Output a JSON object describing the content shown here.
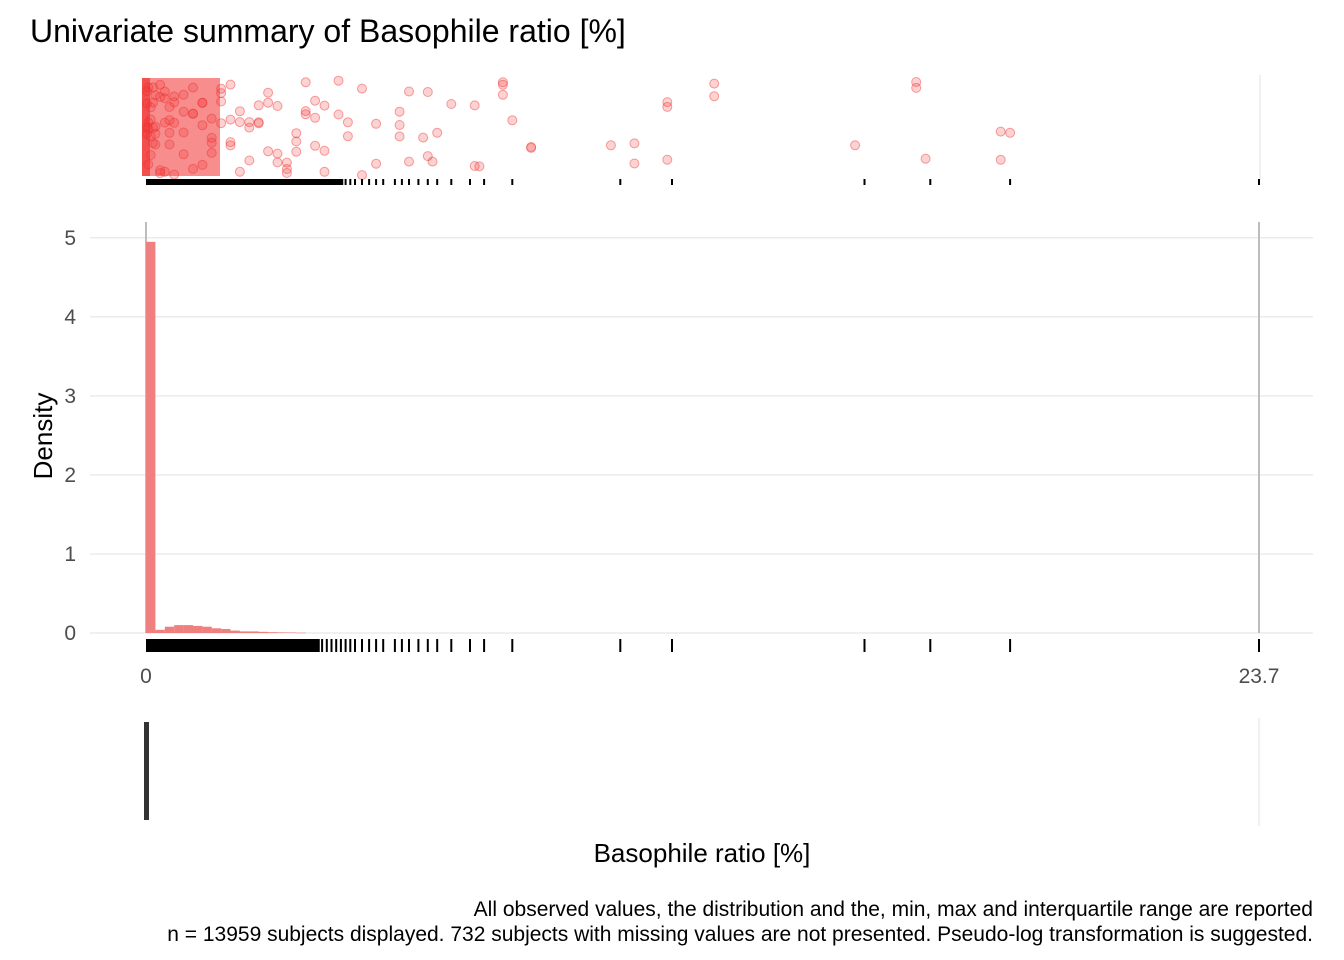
{
  "title": "Univariate summary of Basophile ratio [%]",
  "caption": {
    "line1": "All observed values, the distribution and the, min, max and interquartile range are reported",
    "line2": "n = 13959 subjects displayed. 732 subjects with missing values are not presented. Pseudo-log transformation is suggested."
  },
  "colors": {
    "accent": "#f03030",
    "bar_fill": "#f08080",
    "rug": "#000000",
    "grid": "#ebebeb",
    "max_line": "#bdbdbd",
    "box": "#333333"
  },
  "chart_data": [
    {
      "type": "scatter",
      "panel": "jittered observed values",
      "x_range": [
        0,
        23.7
      ],
      "points_x": [
        0.02,
        0.05,
        0.1,
        0.15,
        0.2,
        0.3,
        0.4,
        0.5,
        0.6,
        0.8,
        1.0,
        1.2,
        1.4,
        1.6,
        1.8,
        2.0,
        2.2,
        2.4,
        2.6,
        2.8,
        3.0,
        3.2,
        3.4,
        3.6,
        3.8,
        4.1,
        4.3,
        4.6,
        4.9,
        5.4,
        6.0,
        7.0,
        7.6,
        8.2,
        10.4,
        11.1,
        12.1,
        16.4,
        18.2
      ],
      "outlier_points": [
        {
          "x": 5.6,
          "y": 0.12
        },
        {
          "x": 5.9,
          "y": 0.6
        },
        {
          "x": 6.1,
          "y": 0.85
        },
        {
          "x": 6.2,
          "y": 0.55
        },
        {
          "x": 7.1,
          "y": 0.9
        },
        {
          "x": 7.6,
          "y": 0.05
        },
        {
          "x": 7.8,
          "y": 0.42
        },
        {
          "x": 9.9,
          "y": 0.68
        },
        {
          "x": 11.1,
          "y": 0.28
        },
        {
          "x": 15.1,
          "y": 0.68
        },
        {
          "x": 16.6,
          "y": 0.82
        },
        {
          "x": 18.4,
          "y": 0.55
        },
        {
          "x": 5.6,
          "y": 0.85
        },
        {
          "x": 6.5,
          "y": 0.25
        },
        {
          "x": 5.4,
          "y": 0.33
        }
      ]
    },
    {
      "type": "bar",
      "panel": "histogram",
      "ylabel": "Density",
      "xlim": [
        0,
        23.7
      ],
      "ylim": [
        0,
        5.2
      ],
      "yticks": [
        0,
        1,
        2,
        3,
        4,
        5
      ],
      "xticks": [
        {
          "value": 0,
          "label": "0"
        },
        {
          "value": 23.7,
          "label": "23.7"
        }
      ],
      "bin_width": 0.2,
      "bin_starts": [
        0.0,
        0.2,
        0.4,
        0.6,
        0.8,
        1.0,
        1.2,
        1.4,
        1.6,
        1.8,
        2.0,
        2.2,
        2.4,
        2.6,
        2.8,
        3.0,
        3.2
      ],
      "values": [
        4.95,
        0.04,
        0.08,
        0.1,
        0.1,
        0.09,
        0.08,
        0.06,
        0.05,
        0.03,
        0.02,
        0.02,
        0.015,
        0.01,
        0.008,
        0.006,
        0.004
      ],
      "rug_x": [
        0.05,
        0.15,
        0.25,
        0.35,
        0.45,
        0.55,
        0.65,
        0.75,
        0.85,
        0.95,
        1.05,
        1.15,
        1.25,
        1.35,
        1.45,
        1.55,
        1.65,
        1.75,
        1.85,
        1.95,
        2.05,
        2.15,
        2.25,
        2.35,
        2.45,
        2.55,
        2.65,
        2.75,
        2.85,
        2.95,
        3.05,
        3.15,
        3.25,
        3.35,
        3.45,
        3.55,
        3.65,
        3.75,
        3.85,
        3.95,
        4.05,
        4.15,
        4.25,
        4.35,
        4.45,
        4.6,
        4.75,
        4.9,
        5.05,
        5.3,
        5.45,
        5.6,
        5.8,
        6.0,
        6.2,
        6.5,
        6.9,
        7.2,
        7.8,
        10.1,
        11.2,
        15.3,
        16.7,
        18.4,
        23.7
      ]
    },
    {
      "type": "box",
      "panel": "min, max and interquartile range",
      "xlabel": "Basophile ratio [%]",
      "min": 0,
      "q1": 0,
      "median": 0,
      "q3": 0.05,
      "max": 23.7
    }
  ]
}
